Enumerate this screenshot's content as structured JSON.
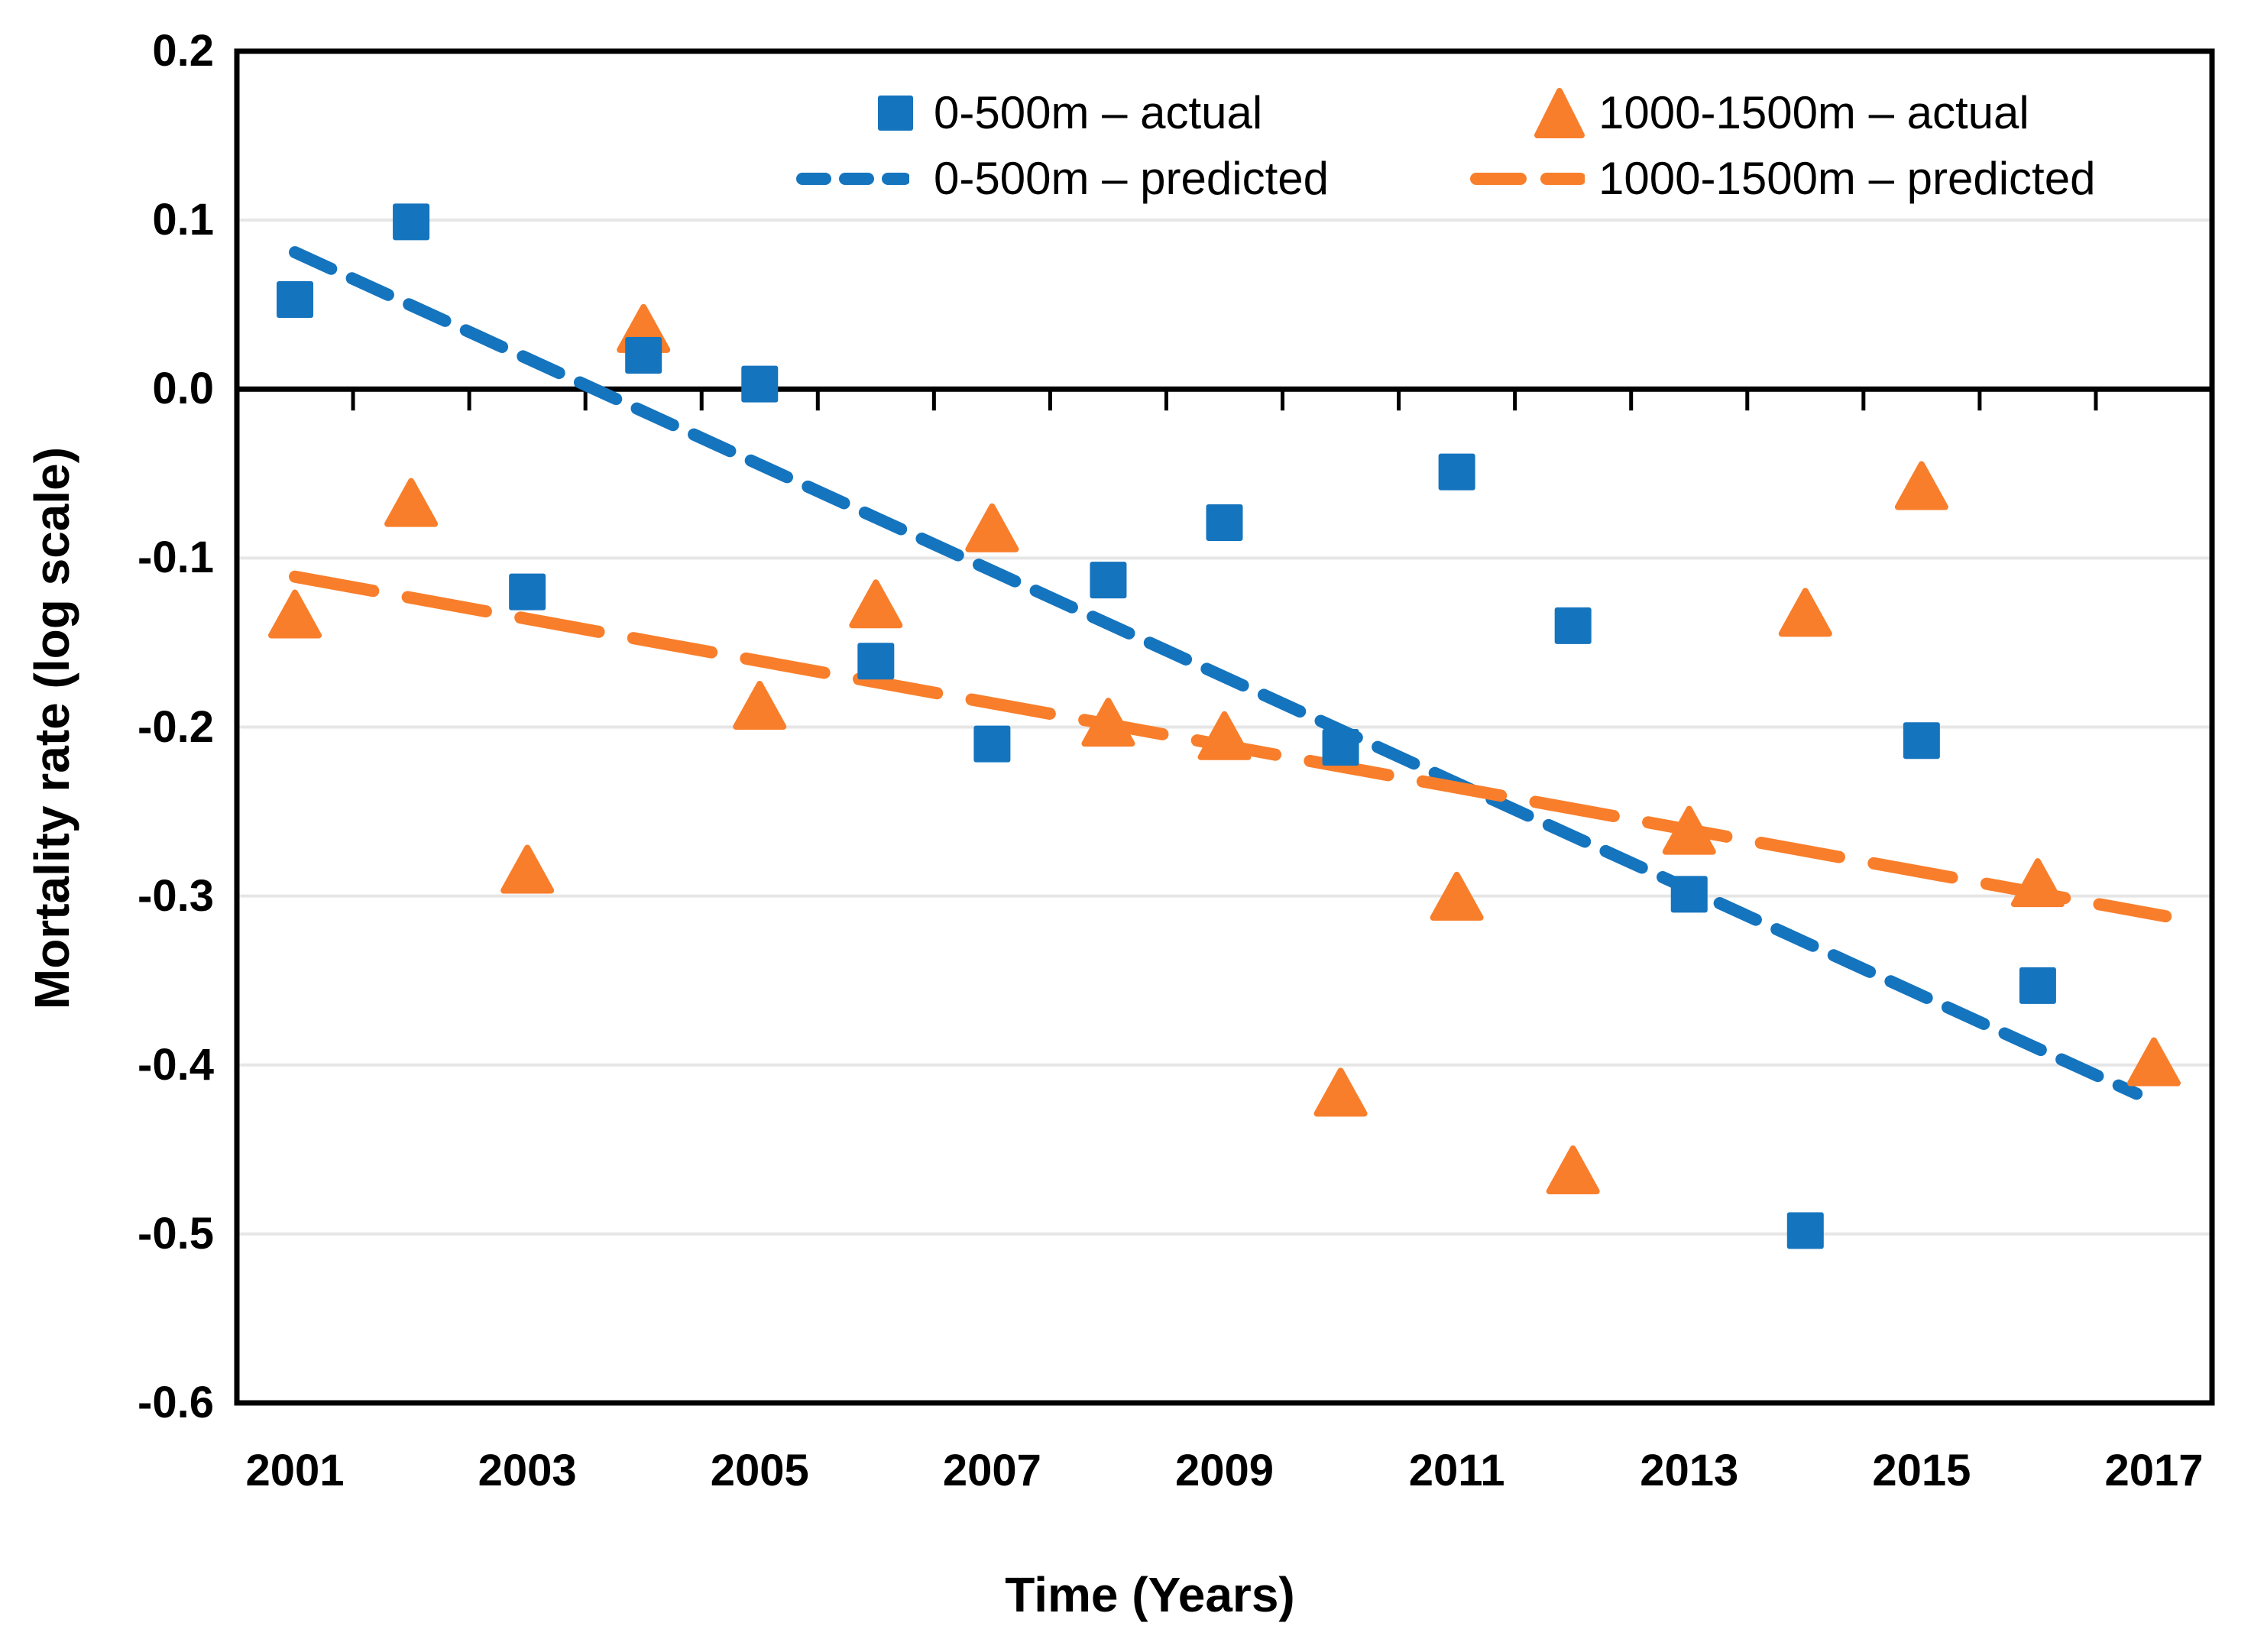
{
  "chart_data": {
    "type": "scatter",
    "title": "",
    "xlabel": "Time (Years)",
    "ylabel": "Mortality rate (log scale)",
    "xlim": [
      2000.5,
      2017.5
    ],
    "ylim": [
      -0.6,
      0.2
    ],
    "xticks": [
      2001,
      2003,
      2005,
      2007,
      2009,
      2011,
      2013,
      2015,
      2017
    ],
    "xtick_labels": [
      "2001",
      "2003",
      "2005",
      "2007",
      "2009",
      "2011",
      "2013",
      "2015",
      "2017"
    ],
    "yticks": [
      0.2,
      0.1,
      0.0,
      -0.1,
      -0.2,
      -0.3,
      -0.4,
      -0.5,
      -0.6
    ],
    "ytick_labels": [
      "0.2",
      "0.1",
      "0.0",
      "-0.1",
      "-0.2",
      "-0.3",
      "-0.4",
      "-0.5",
      "-0.6"
    ],
    "grid": "horizontal-only",
    "gridline_color": "#E6E6E6",
    "axis_color": "#000000",
    "x_axis_drawn_at_zero": true,
    "legend_position": "top-center-inside",
    "series": [
      {
        "name": "0-500m – actual",
        "type": "scatter",
        "marker": "square",
        "color": "#1574BE",
        "points": [
          [
            2001,
            0.053
          ],
          [
            2002,
            0.099
          ],
          [
            2003,
            -0.12
          ],
          [
            2004,
            0.02
          ],
          [
            2005,
            0.003
          ],
          [
            2006,
            -0.161
          ],
          [
            2007,
            -0.21
          ],
          [
            2008,
            -0.113
          ],
          [
            2009,
            -0.079
          ],
          [
            2010,
            -0.212
          ],
          [
            2011,
            -0.049
          ],
          [
            2012,
            -0.14
          ],
          [
            2013,
            -0.299
          ],
          [
            2014,
            -0.498
          ],
          [
            2015,
            -0.208
          ],
          [
            2016,
            -0.353
          ]
        ]
      },
      {
        "name": "1000-1500m – actual",
        "type": "scatter",
        "marker": "triangle",
        "color": "#F87E2B",
        "points": [
          [
            2001,
            -0.134
          ],
          [
            2002,
            -0.068
          ],
          [
            2003,
            -0.285
          ],
          [
            2004,
            0.035
          ],
          [
            2005,
            -0.188
          ],
          [
            2006,
            -0.128
          ],
          [
            2007,
            -0.083
          ],
          [
            2008,
            -0.198
          ],
          [
            2009,
            -0.206
          ],
          [
            2010,
            -0.417
          ],
          [
            2011,
            -0.301
          ],
          [
            2012,
            -0.463
          ],
          [
            2013,
            -0.262
          ],
          [
            2014,
            -0.133
          ],
          [
            2015,
            -0.058
          ],
          [
            2016,
            -0.293
          ],
          [
            2017,
            -0.399
          ]
        ]
      },
      {
        "name": "0-500m – predicted",
        "type": "line",
        "dash": [
          52,
          30
        ],
        "stroke_width": 16,
        "color": "#1574BE",
        "from": [
          2001,
          0.081
        ],
        "to": [
          2016.85,
          -0.417
        ]
      },
      {
        "name": "1000-1500m – predicted",
        "type": "line",
        "dash": [
          104,
          46
        ],
        "stroke_width": 16,
        "color": "#F87E2B",
        "from": [
          2001,
          -0.111
        ],
        "to": [
          2017.1,
          -0.312
        ]
      }
    ]
  }
}
